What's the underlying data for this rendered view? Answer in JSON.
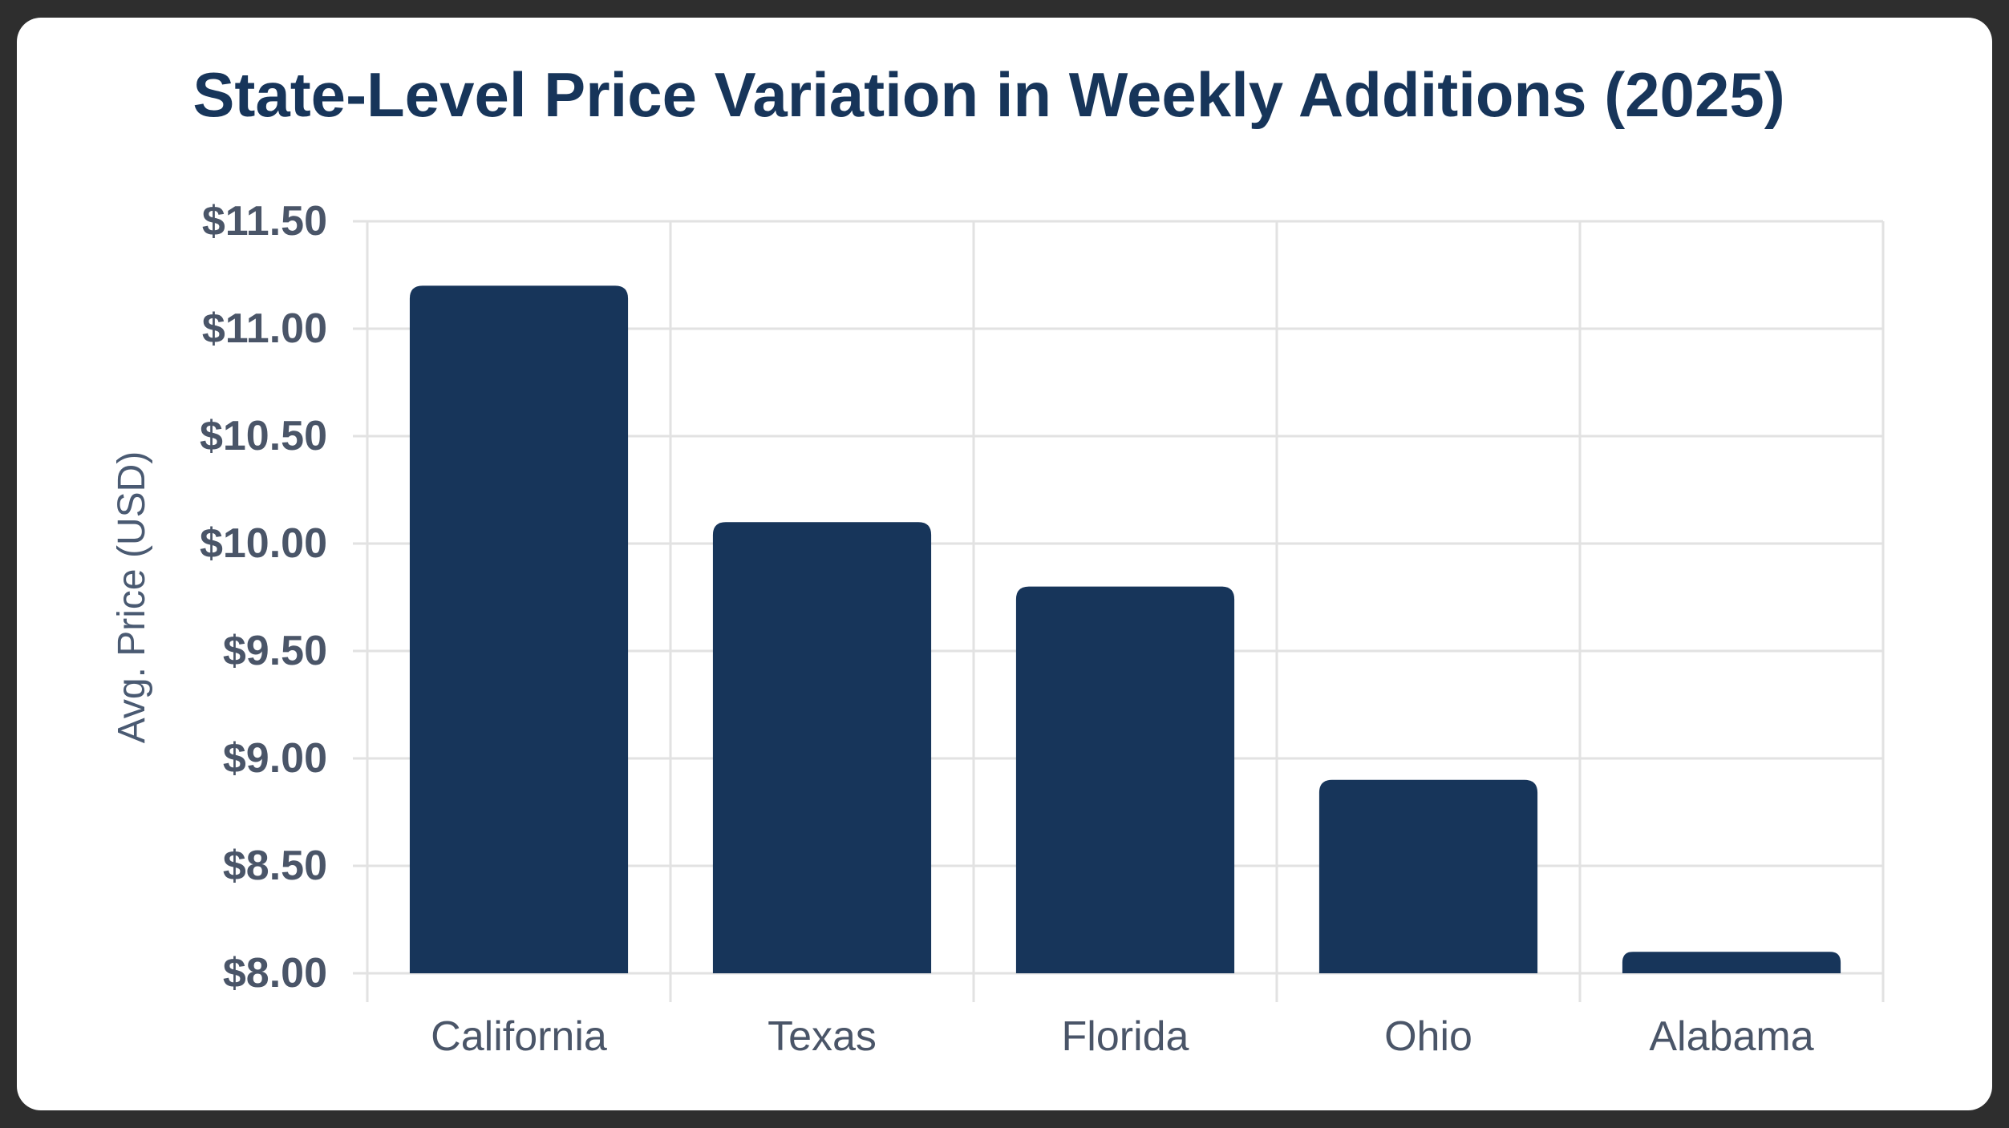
{
  "chart_data": {
    "type": "bar",
    "title": "State-Level Price Variation in Weekly Additions (2025)",
    "xlabel": "",
    "ylabel": "Avg. Price (USD)",
    "categories": [
      "California",
      "Texas",
      "Florida",
      "Ohio",
      "Alabama"
    ],
    "values": [
      11.2,
      10.1,
      9.8,
      8.9,
      8.1
    ],
    "ylim": [
      8.0,
      11.5
    ],
    "yticks": [
      8.0,
      8.5,
      9.0,
      9.5,
      10.0,
      10.5,
      11.0,
      11.5
    ],
    "ytick_labels": [
      "$8.00",
      "$8.50",
      "$9.00",
      "$9.50",
      "$10.00",
      "$10.50",
      "$11.00",
      "$11.50"
    ],
    "grid": true,
    "colors": {
      "bar": "#17355a",
      "title": "#17355a",
      "text": "#4a5568",
      "grid": "#e2e2e2"
    }
  }
}
